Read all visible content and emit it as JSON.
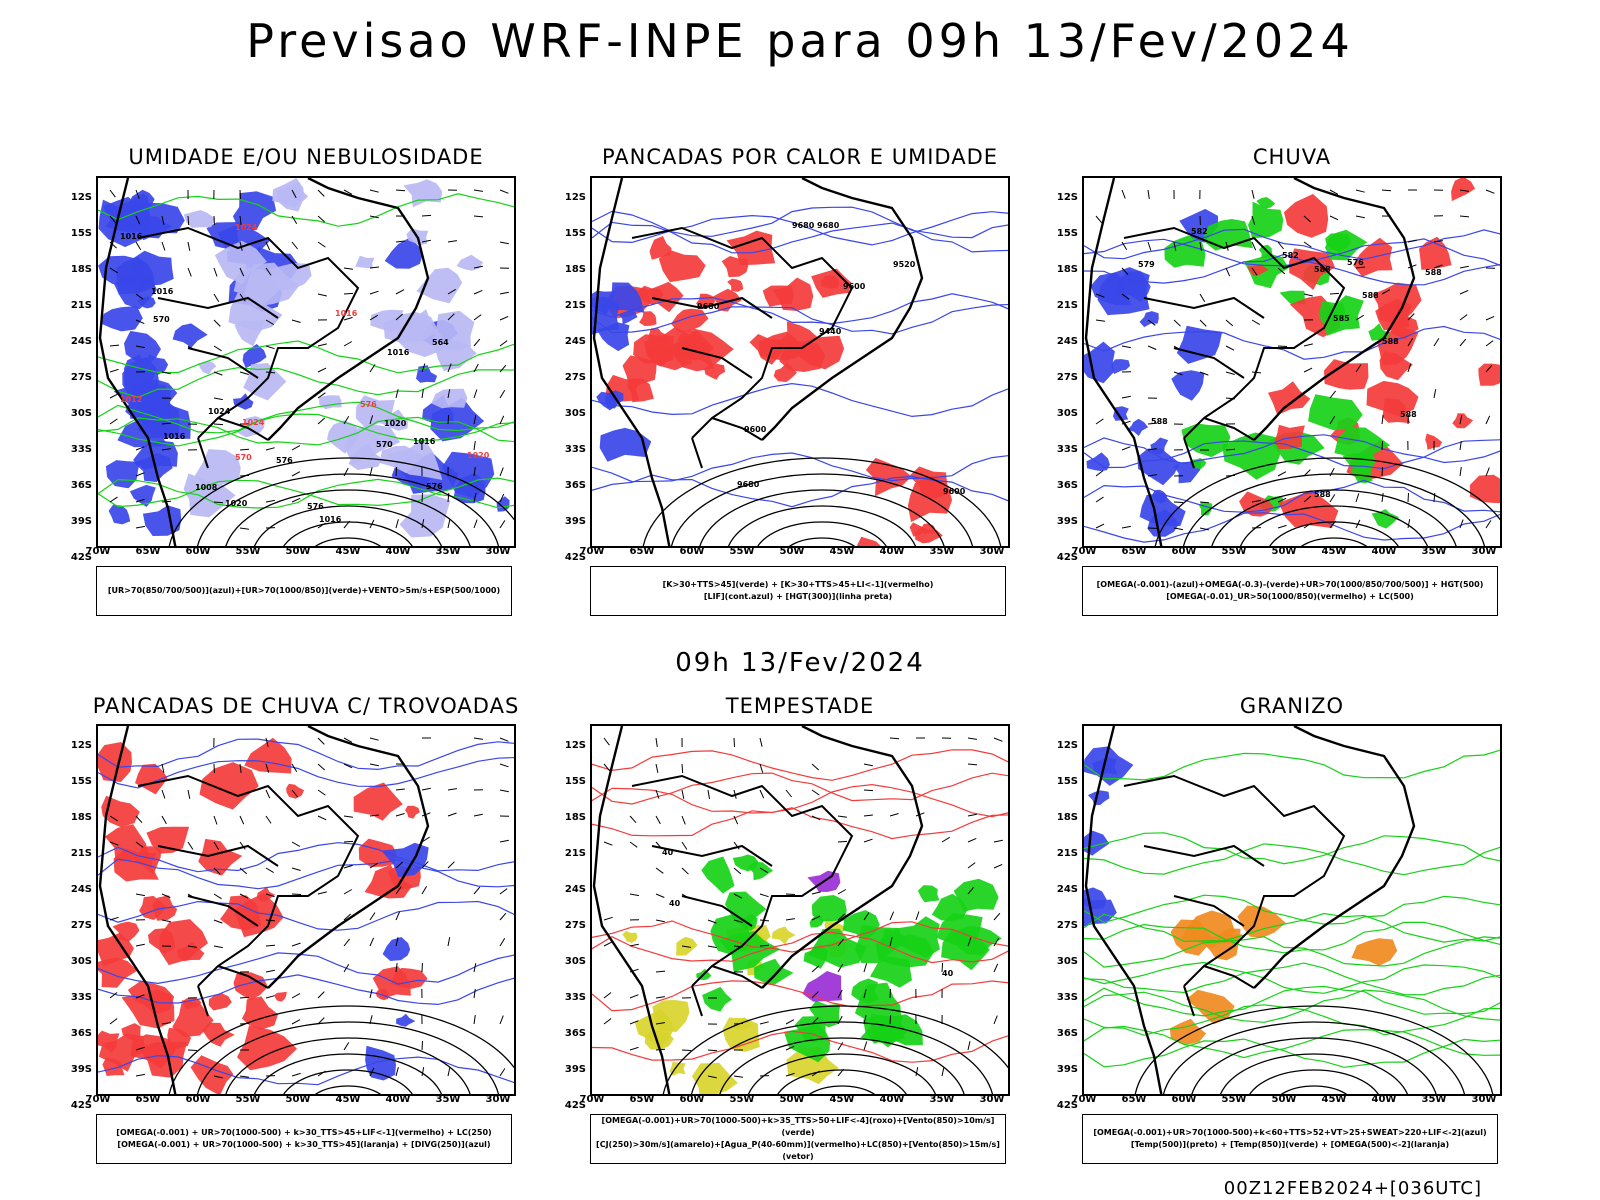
{
  "title": "Previsao WRF-INPE  para 09h 13/Fev/2024",
  "mid_title": "09h 13/Fev/2024",
  "footer": "00Z12FEB2024+[036UTC]",
  "axes": {
    "lat_labels": [
      "12S",
      "15S",
      "18S",
      "21S",
      "24S",
      "27S",
      "30S",
      "33S",
      "36S",
      "39S",
      "42S"
    ],
    "lon_labels": [
      "70W",
      "65W",
      "60W",
      "55W",
      "50W",
      "45W",
      "40W",
      "35W",
      "30W"
    ]
  },
  "colors": {
    "blue": "#3a46e8",
    "lightblue": "#b8b8f4",
    "green": "#17d117",
    "red": "#f43b3b",
    "yellow": "#d8d42c",
    "orange": "#f08a1e",
    "purple": "#9b2fd6",
    "black": "#000000"
  },
  "panels": [
    {
      "title": "UMIDADE E/OU NEBULOSIDADE",
      "legend": [
        "[UR>70(850/700/500)](azul)+[UR>70(1000/850)](verde)+VENTO>5m/s+ESP(500/1000)"
      ],
      "labels": [
        "1016",
        "1016",
        "1016",
        "1016",
        "1020",
        "1020",
        "1020",
        "1024",
        "1024",
        "1016",
        "1016",
        "1012",
        "1008",
        "1016",
        "1024",
        "576",
        "570",
        "576",
        "570",
        "576",
        "570",
        "576",
        "564"
      ]
    },
    {
      "title": "PANCADAS POR CALOR E UMIDADE",
      "legend": [
        "[K>30+TTS>45](verde) + [K>30+TTS>45+LI<-1](vermelho)",
        "[LIF](cont.azul) + [HGT(300)](linha preta)"
      ],
      "labels": [
        "9680",
        "9680",
        "9600",
        "9680",
        "9680",
        "9600",
        "9600",
        "9520",
        "9440"
      ]
    },
    {
      "title": "CHUVA",
      "legend": [
        "[OMEGA(-0.001)-(azul)+OMEGA(-0.3)-(verde)+UR>70(1000/850/700/500)] + HGT(500)",
        "[OMEGA(-0.01)_UR>50(1000/850)(vermelho) + LC(500)"
      ],
      "labels": [
        "588",
        "588",
        "588",
        "588",
        "585",
        "582",
        "588",
        "582",
        "579",
        "588",
        "576",
        "588"
      ]
    },
    {
      "title": "PANCADAS DE CHUVA C/ TROVOADAS",
      "legend": [
        "[OMEGA(-0.001) + UR>70(1000-500) + k>30_TTS>45+LIF<-1](vermelho) + LC(250)",
        "[OMEGA(-0.001) + UR>70(1000-500) + k>30_TTS>45](laranja) + [DIVG(250)](azul)"
      ],
      "labels": []
    },
    {
      "title": "TEMPESTADE",
      "legend": [
        "[OMEGA(-0.001)+UR>70(1000-500)+k>35_TTS>50+LIF<-4](roxo)+[Vento(850)>10m/s](verde)",
        "[CJ(250)>30m/s](amarelo)+[Agua_P(40-60mm)](vermelho)+LC(850)+[Vento(850)>15m/s](vetor)"
      ],
      "labels": [
        "40",
        "40",
        "40"
      ]
    },
    {
      "title": "GRANIZO",
      "legend": [
        "[OMEGA(-0.001)+UR>70(1000-500)+k<60+TTS>52+VT>25+SWEAT>220+LIF<-2](azul)",
        "[Temp(500)](preto) + [Temp(850)](verde) + [OMEGA(500)<-2](laranja)"
      ],
      "labels": []
    }
  ]
}
